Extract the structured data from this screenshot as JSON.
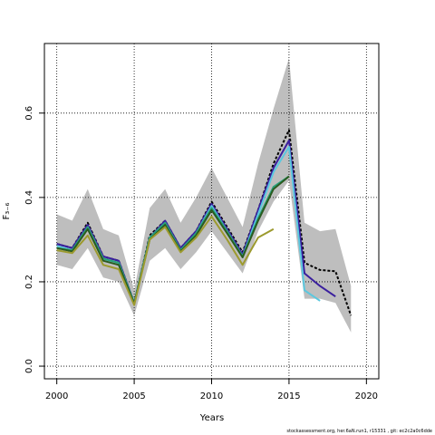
{
  "chart_data": {
    "type": "line",
    "title": "",
    "xlabel": "Years",
    "ylabel": "F₃₋₆",
    "xlim": [
      1999.2,
      2020.8
    ],
    "ylim": [
      -0.03,
      0.765
    ],
    "xticks": [
      2000,
      2005,
      2010,
      2015,
      2020
    ],
    "yticks": [
      0.0,
      0.2,
      0.4,
      0.6
    ],
    "xtick_labels": [
      "2000",
      "2005",
      "2010",
      "2015",
      "2020"
    ],
    "ytick_labels": [
      "0.0",
      "0.2",
      "0.4",
      "0.6"
    ],
    "grid": true,
    "band": {
      "name": "confidence interval",
      "color": "#bebebe",
      "x": [
        2000,
        2001,
        2002,
        2003,
        2004,
        2005,
        2006,
        2007,
        2008,
        2009,
        2010,
        2011,
        2012,
        2013,
        2014,
        2015,
        2016,
        2017,
        2018,
        2019
      ],
      "lower": [
        0.24,
        0.23,
        0.28,
        0.21,
        0.2,
        0.12,
        0.25,
        0.28,
        0.23,
        0.27,
        0.32,
        0.27,
        0.22,
        0.32,
        0.39,
        0.44,
        0.16,
        0.16,
        0.15,
        0.08
      ],
      "upper": [
        0.36,
        0.345,
        0.42,
        0.325,
        0.31,
        0.18,
        0.375,
        0.42,
        0.34,
        0.4,
        0.47,
        0.4,
        0.33,
        0.48,
        0.61,
        0.73,
        0.34,
        0.32,
        0.325,
        0.19
      ]
    },
    "series": [
      {
        "color": "#000000",
        "dashed": true,
        "x": [
          2000,
          2001,
          2002,
          2003,
          2004,
          2005,
          2006,
          2007,
          2008,
          2009,
          2010,
          2011,
          2012,
          2013,
          2014,
          2015,
          2016,
          2017,
          2018,
          2019
        ],
        "values": [
          0.29,
          0.28,
          0.34,
          0.26,
          0.25,
          0.15,
          0.31,
          0.345,
          0.28,
          0.32,
          0.39,
          0.33,
          0.27,
          0.37,
          0.48,
          0.56,
          0.245,
          0.228,
          0.225,
          0.12
        ]
      },
      {
        "color": "#3a1f9e",
        "dashed": false,
        "x": [
          2000,
          2001,
          2002,
          2003,
          2004,
          2005,
          2006,
          2007,
          2008,
          2009,
          2010,
          2011,
          2012,
          2013,
          2014,
          2015,
          2016,
          2017,
          2018
        ],
        "values": [
          0.29,
          0.28,
          0.335,
          0.26,
          0.25,
          0.15,
          0.305,
          0.345,
          0.28,
          0.32,
          0.385,
          0.325,
          0.265,
          0.37,
          0.47,
          0.535,
          0.22,
          0.19,
          0.165
        ]
      },
      {
        "color": "#5bc8df",
        "dashed": false,
        "x": [
          2000,
          2001,
          2002,
          2003,
          2004,
          2005,
          2006,
          2007,
          2008,
          2009,
          2010,
          2011,
          2012,
          2013,
          2014,
          2015,
          2016,
          2017
        ],
        "values": [
          0.285,
          0.275,
          0.33,
          0.255,
          0.245,
          0.15,
          0.305,
          0.34,
          0.275,
          0.315,
          0.38,
          0.32,
          0.26,
          0.36,
          0.46,
          0.52,
          0.18,
          0.155
        ]
      },
      {
        "color": "#28a07a",
        "dashed": false,
        "x": [
          2000,
          2001,
          2002,
          2003,
          2004,
          2005,
          2006,
          2007,
          2008,
          2009,
          2010,
          2011,
          2012,
          2013,
          2014,
          2015
        ],
        "values": [
          0.28,
          0.275,
          0.33,
          0.255,
          0.245,
          0.15,
          0.305,
          0.34,
          0.275,
          0.315,
          0.375,
          0.32,
          0.26,
          0.35,
          0.425,
          0.45
        ]
      },
      {
        "color": "#2a5b1f",
        "dashed": false,
        "x": [
          2000,
          2001,
          2002,
          2003,
          2004,
          2005,
          2006,
          2007,
          2008,
          2009,
          2010,
          2011,
          2012,
          2013,
          2014,
          2015
        ],
        "values": [
          0.28,
          0.272,
          0.325,
          0.25,
          0.24,
          0.148,
          0.3,
          0.335,
          0.272,
          0.31,
          0.37,
          0.315,
          0.258,
          0.345,
          0.42,
          0.45
        ]
      },
      {
        "color": "#9c9a2e",
        "dashed": false,
        "x": [
          2000,
          2001,
          2002,
          2003,
          2004,
          2005,
          2006,
          2007,
          2008,
          2009,
          2010,
          2011,
          2012,
          2013,
          2014
        ],
        "values": [
          0.275,
          0.268,
          0.31,
          0.24,
          0.23,
          0.145,
          0.3,
          0.33,
          0.27,
          0.305,
          0.355,
          0.3,
          0.24,
          0.305,
          0.325
        ]
      }
    ]
  },
  "footer": {
    "text": "stockassessment.org, her.6aN.run1, r15331 , git: ec2c2a0c6dde"
  }
}
